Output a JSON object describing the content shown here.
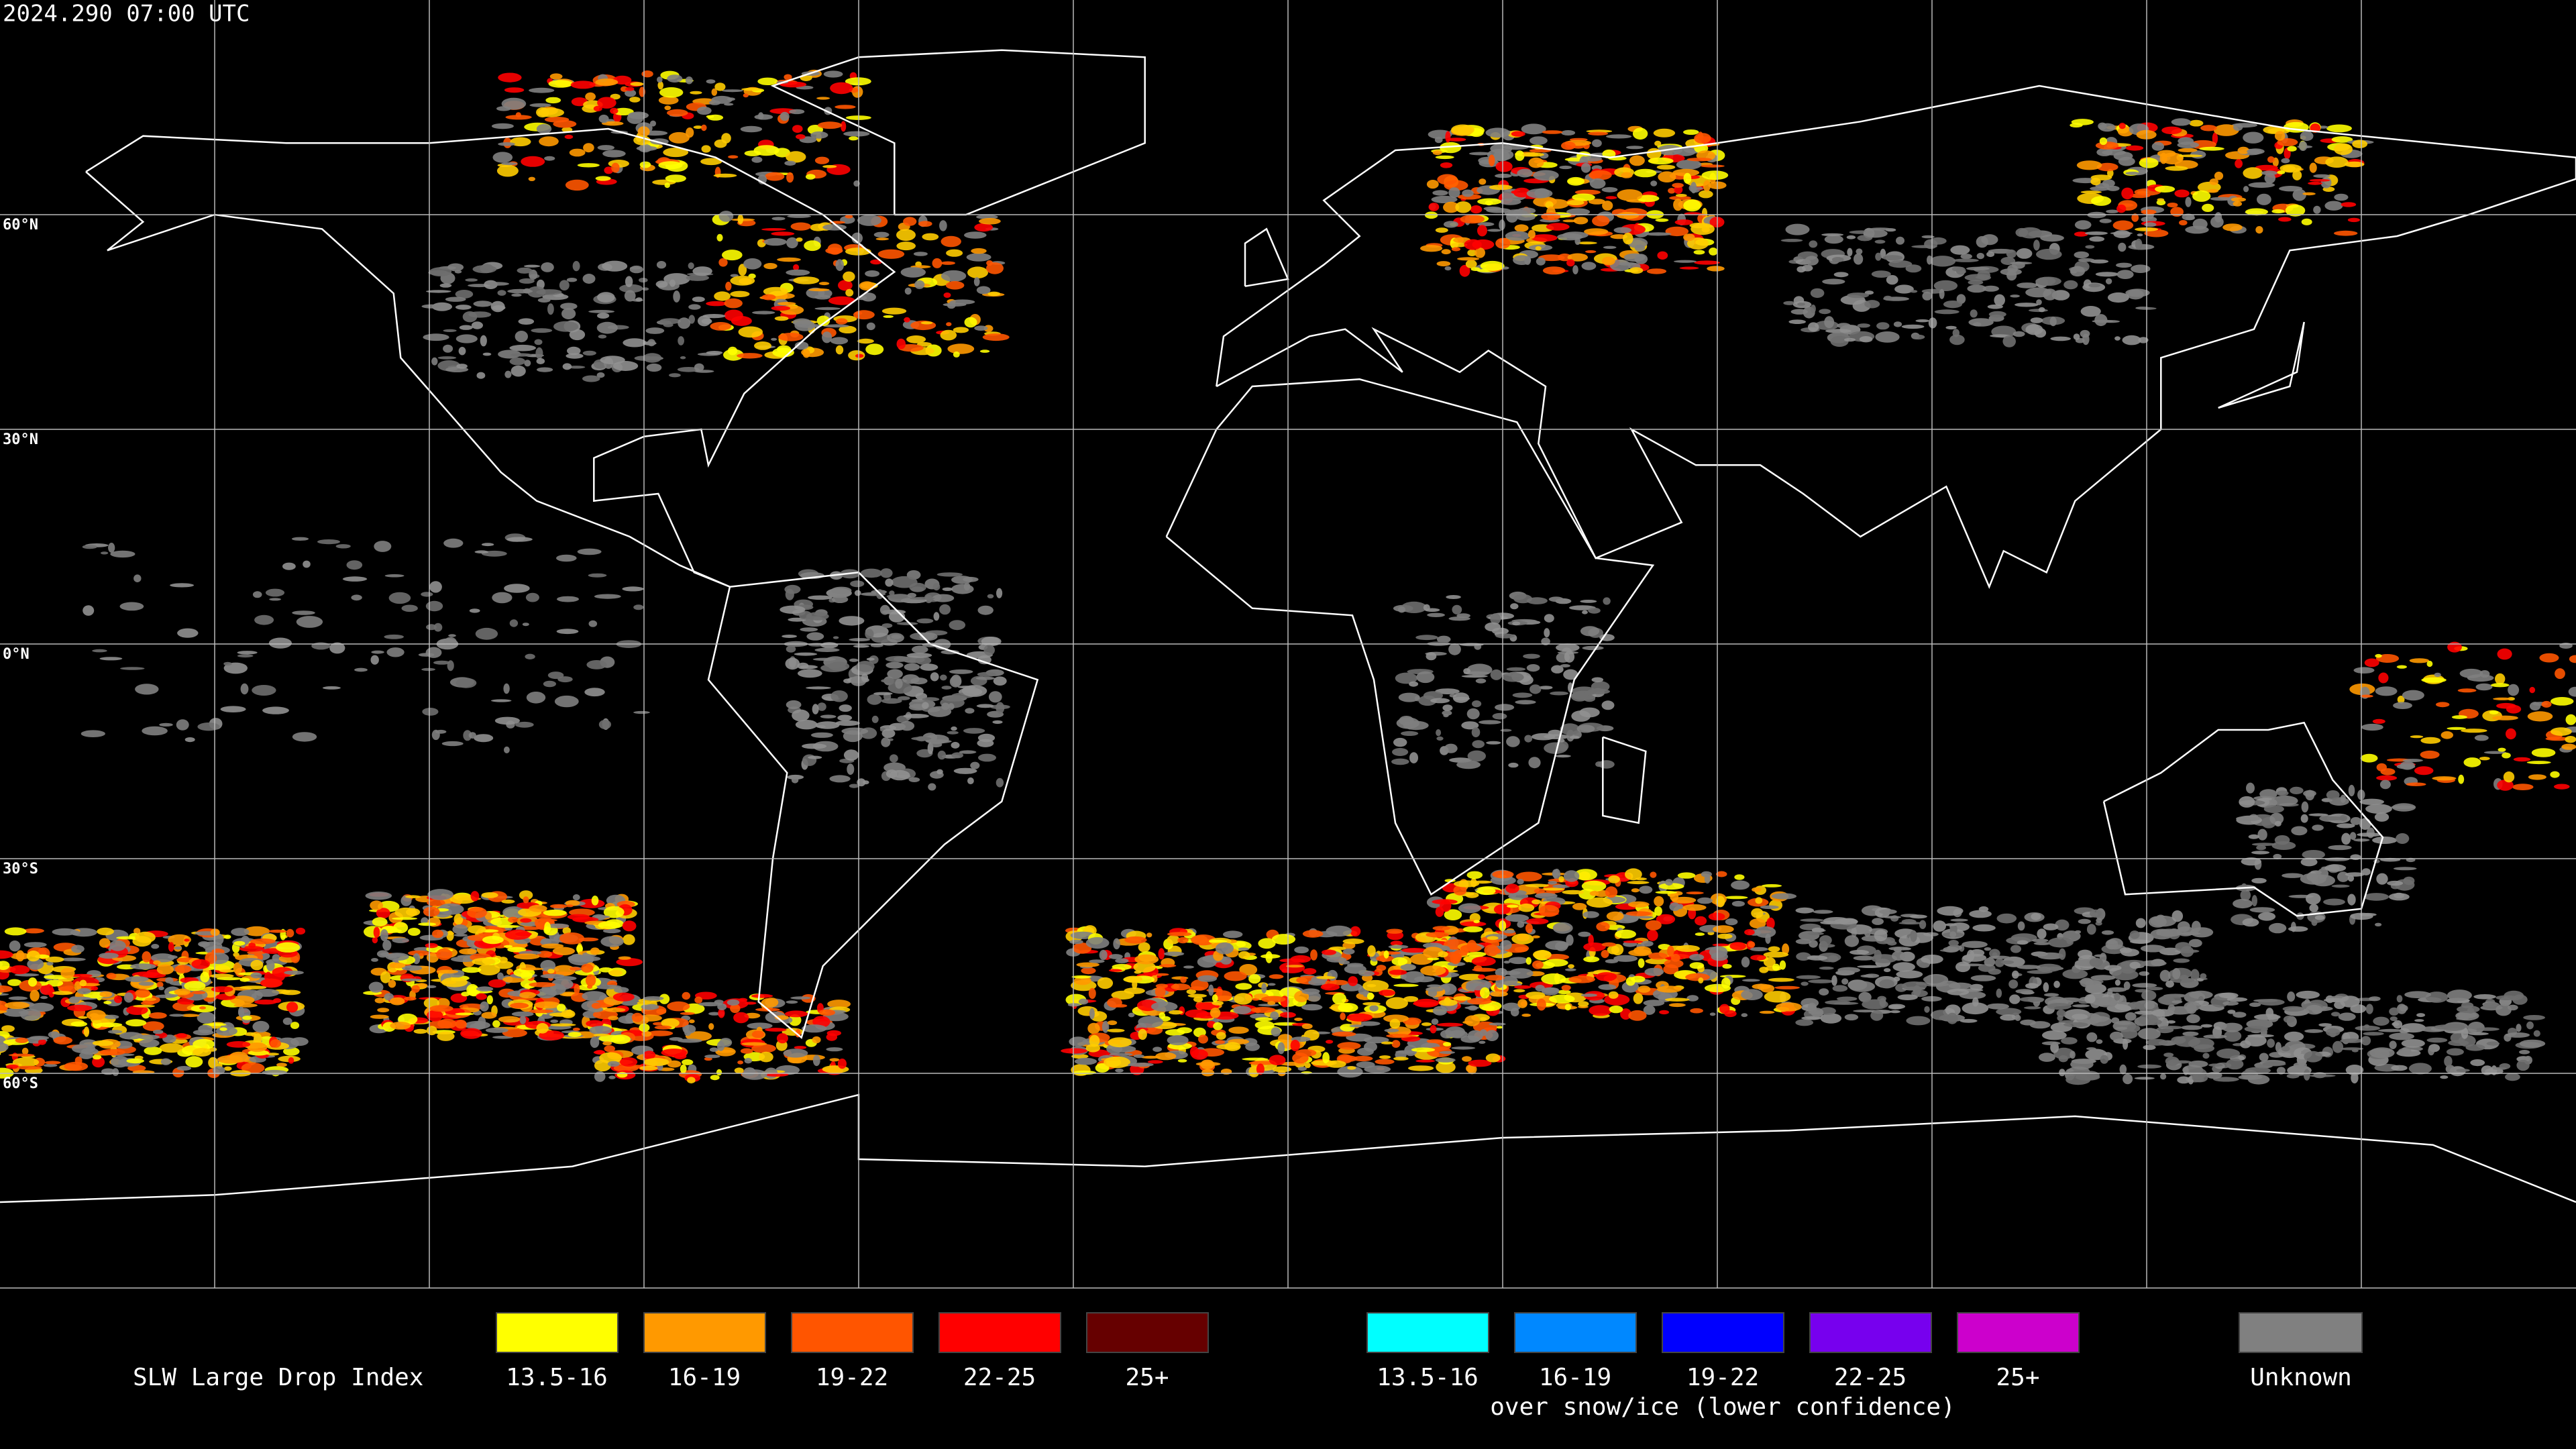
{
  "header": {
    "timestamp": "2024.290 07:00 UTC"
  },
  "map": {
    "latitude_labels": [
      "60°N",
      "30°N",
      "0°N",
      "30°S",
      "60°S"
    ]
  },
  "legend": {
    "title": "SLW Large Drop Index",
    "groups": [
      {
        "items": [
          {
            "label": "13.5-16",
            "color": "#ffff00"
          },
          {
            "label": "16-19",
            "color": "#ff9900"
          },
          {
            "label": "19-22",
            "color": "#ff5500"
          },
          {
            "label": "22-25",
            "color": "#ff0000"
          },
          {
            "label": "25+",
            "color": "#660000"
          }
        ]
      },
      {
        "items": [
          {
            "label": "13.5-16",
            "color": "#00ffff"
          },
          {
            "label": "16-19",
            "color": "#0088ff"
          },
          {
            "label": "19-22",
            "color": "#0000ff"
          },
          {
            "label": "22-25",
            "color": "#7700ee"
          },
          {
            "label": "25+",
            "color": "#cc00cc"
          }
        ],
        "caption": "over snow/ice (lower confidence)"
      }
    ],
    "unknown": {
      "label": "Unknown",
      "color": "#808080"
    }
  }
}
